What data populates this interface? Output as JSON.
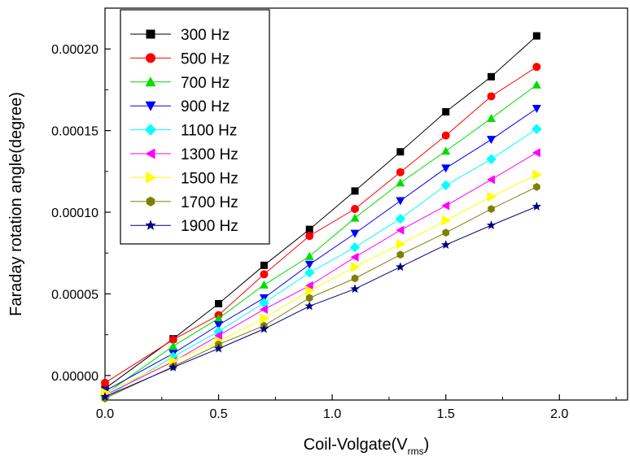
{
  "chart_data": {
    "type": "line",
    "title": "",
    "xlabel": "Coil-Volgate(V",
    "xlabel_sub": "rms",
    "xlabel_close": ")",
    "ylabel": "Faraday rotation angle(degree)",
    "xlim": [
      0.0,
      2.3
    ],
    "ylim": [
      -1.5e-05,
      0.000225
    ],
    "x_ticks": [
      0.0,
      0.5,
      1.0,
      1.5,
      2.0
    ],
    "x_tick_labels": [
      "0.0",
      "0.5",
      "1.0",
      "1.5",
      "2.0"
    ],
    "y_ticks": [
      0.0,
      5e-05,
      0.0001,
      0.00015,
      0.0002
    ],
    "y_tick_labels": [
      "0.00000",
      "0.00005",
      "0.00010",
      "0.00015",
      "0.00020"
    ],
    "grid": false,
    "legend_position": "top-left",
    "x": [
      0.0,
      0.3,
      0.5,
      0.7,
      0.9,
      1.1,
      1.3,
      1.5,
      1.7,
      1.9
    ],
    "series": [
      {
        "name": "300 Hz",
        "color": "#000000",
        "marker": "square",
        "values": [
          -8e-06,
          2.25e-05,
          4.4e-05,
          6.75e-05,
          8.95e-05,
          0.000113,
          0.000137,
          0.0001615,
          0.000183,
          0.000208
        ]
      },
      {
        "name": "500 Hz",
        "color": "#ff0000",
        "marker": "circle",
        "values": [
          -4.5e-06,
          2.2e-05,
          3.7e-05,
          6.2e-05,
          8.55e-05,
          0.000102,
          0.0001245,
          0.000147,
          0.000171,
          0.000189
        ]
      },
      {
        "name": "700 Hz",
        "color": "#00dd00",
        "marker": "triangle-up",
        "values": [
          -1.15e-05,
          1.8e-05,
          3.5e-05,
          5.55e-05,
          7.3e-05,
          9.65e-05,
          0.000118,
          0.0001375,
          0.0001575,
          0.000178
        ]
      },
      {
        "name": "900 Hz",
        "color": "#0000ff",
        "marker": "triangle-down",
        "values": [
          -9.5e-06,
          1.35e-05,
          3.1e-05,
          4.75e-05,
          6.8e-05,
          8.7e-05,
          0.000107,
          0.000127,
          0.0001445,
          0.0001635
        ]
      },
      {
        "name": "1100 Hz",
        "color": "#00ffff",
        "marker": "diamond",
        "values": [
          -1.35e-05,
          1.15e-05,
          2.7e-05,
          4.45e-05,
          6.3e-05,
          7.85e-05,
          9.6e-05,
          0.0001165,
          0.0001325,
          0.000151
        ]
      },
      {
        "name": "1300 Hz",
        "color": "#ff00ff",
        "marker": "triangle-left",
        "values": [
          -1.2e-05,
          8.5e-06,
          2.45e-05,
          4.05e-05,
          5.5e-05,
          7.25e-05,
          8.9e-05,
          0.000104,
          0.00012,
          0.0001365
        ]
      },
      {
        "name": "1500 Hz",
        "color": "#ffff00",
        "marker": "triangle-right",
        "values": [
          -1.05e-05,
          9e-06,
          2.1e-05,
          3.5e-05,
          5.2e-05,
          6.65e-05,
          8.05e-05,
          9.5e-05,
          0.0001095,
          0.000123
        ]
      },
      {
        "name": "1700 Hz",
        "color": "#808000",
        "marker": "hexagon",
        "values": [
          -1.4e-05,
          5.5e-06,
          1.9e-05,
          3.05e-05,
          4.75e-05,
          5.95e-05,
          7.4e-05,
          8.75e-05,
          0.000102,
          0.0001155
        ]
      },
      {
        "name": "1900 Hz",
        "color": "#000080",
        "marker": "star",
        "values": [
          -1.3e-05,
          5e-06,
          1.65e-05,
          2.85e-05,
          4.25e-05,
          5.3e-05,
          6.65e-05,
          8e-05,
          9.2e-05,
          0.0001035
        ]
      }
    ]
  }
}
